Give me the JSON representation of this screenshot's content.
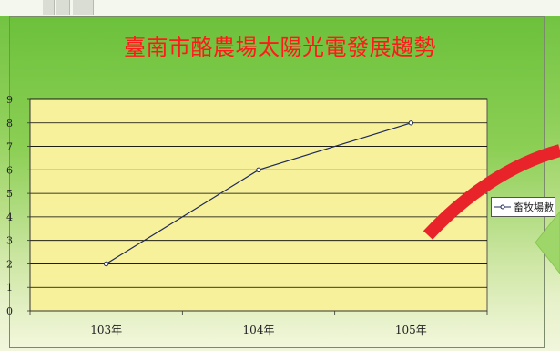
{
  "chart_data": {
    "type": "line",
    "title": "臺南市酪農場太陽光電發展趨勢",
    "categories": [
      "103年",
      "104年",
      "105年"
    ],
    "series": [
      {
        "name": "畜牧場數",
        "values": [
          2,
          6,
          8
        ]
      }
    ],
    "ylim": [
      0,
      9
    ],
    "yticks": [
      0,
      1,
      2,
      3,
      4,
      5,
      6,
      7,
      8,
      9
    ],
    "grid": true,
    "legend": "right",
    "colors": {
      "plot_background": "#f6f19a",
      "gridline": "#000000",
      "line": "#1f2a5a",
      "title": "#ff1a1a"
    }
  }
}
